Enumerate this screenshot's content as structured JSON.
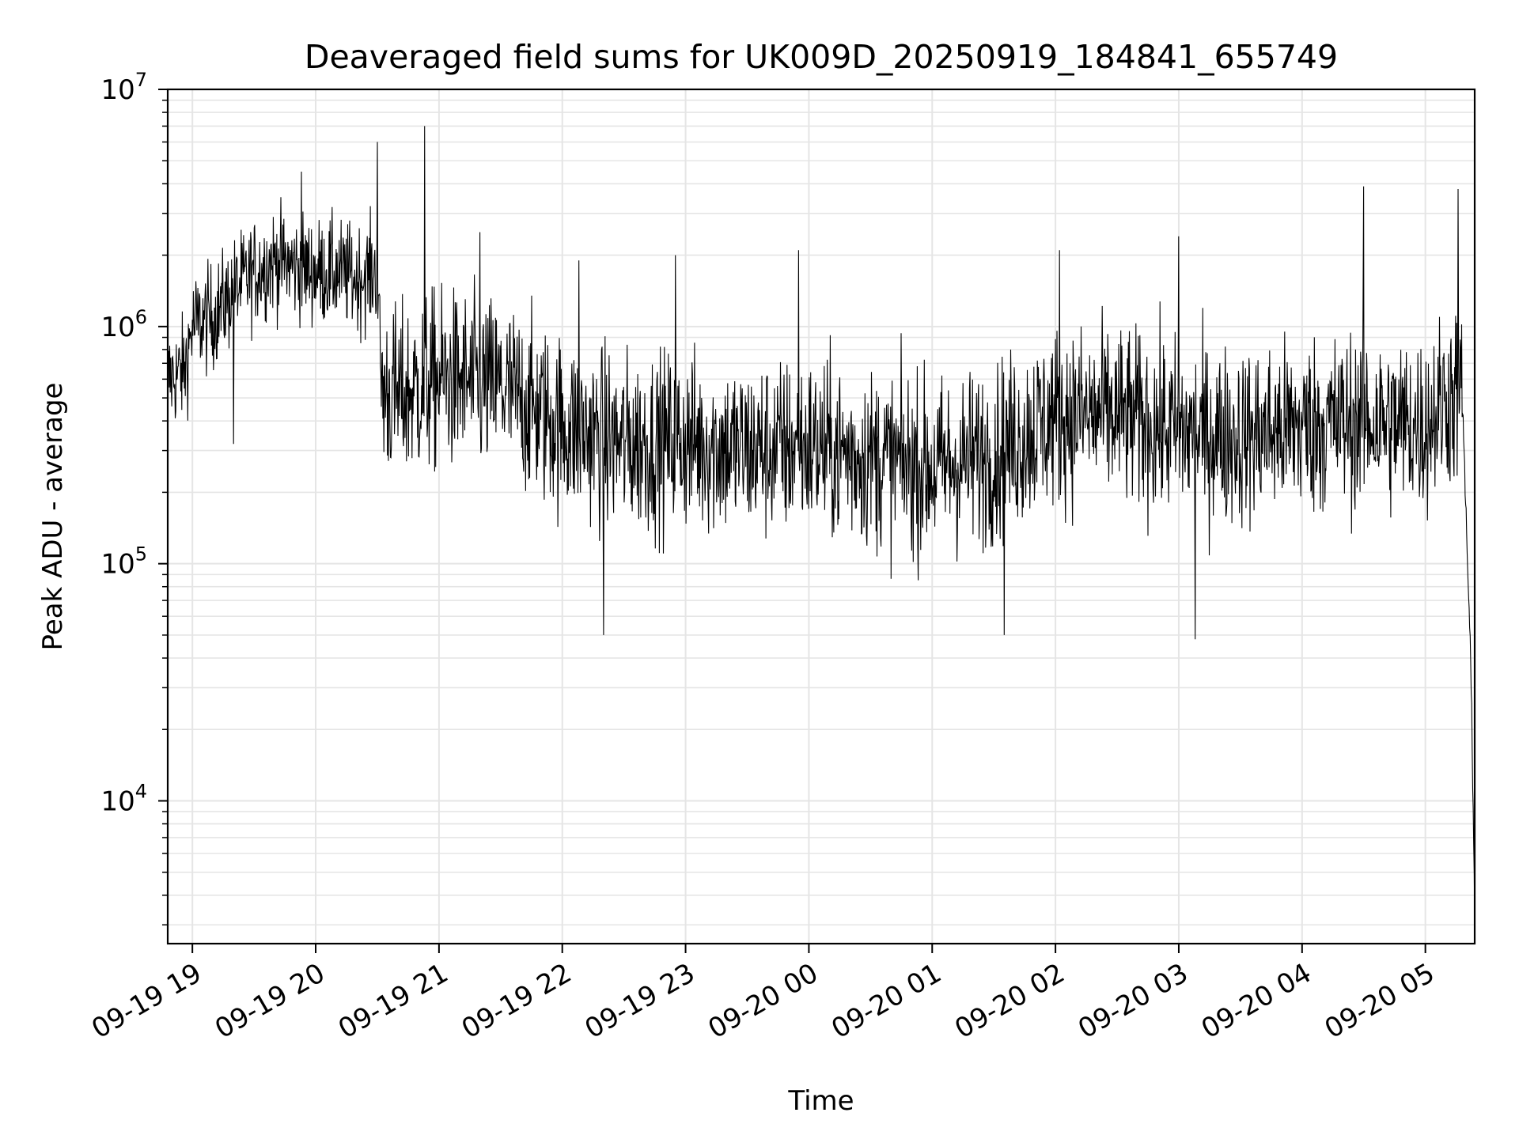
{
  "chart_data": {
    "type": "line",
    "title": "Deaveraged field sums for UK009D_20250919_184841_655749",
    "xlabel": "Time",
    "ylabel": "Peak ADU - average",
    "yscale": "log",
    "ylim": [
      2500,
      10000000
    ],
    "xlim": [
      "2025-09-19 18:48",
      "2025-09-20 05:24"
    ],
    "grid": true,
    "line_color": "#000000",
    "x_tick_labels": [
      "09-19 19",
      "09-19 20",
      "09-19 21",
      "09-19 22",
      "09-19 23",
      "09-20 00",
      "09-20 01",
      "09-20 02",
      "09-20 03",
      "09-20 04",
      "09-20 05"
    ],
    "y_ticks": [
      {
        "base": "10",
        "exp": "4",
        "value": 10000
      },
      {
        "base": "10",
        "exp": "5",
        "value": 100000
      },
      {
        "base": "10",
        "exp": "6",
        "value": 1000000
      },
      {
        "base": "10",
        "exp": "7",
        "value": 10000000
      }
    ],
    "series": [
      {
        "x": [
          "2025-09-19 18:48",
          "2025-09-19 18:56",
          "2025-09-19 19:00",
          "2025-09-19 19:10",
          "2025-09-19 19:20",
          "2025-09-19 19:30",
          "2025-09-19 19:40",
          "2025-09-19 19:50",
          "2025-09-19 20:00",
          "2025-09-19 20:10",
          "2025-09-19 20:20",
          "2025-09-19 20:30",
          "2025-09-19 20:32",
          "2025-09-19 20:40",
          "2025-09-19 21:00",
          "2025-09-19 21:30",
          "2025-09-19 22:00",
          "2025-09-19 22:30",
          "2025-09-19 23:00",
          "2025-09-19 23:30",
          "2025-09-20 00:00",
          "2025-09-20 00:30",
          "2025-09-20 01:00",
          "2025-09-20 01:30",
          "2025-09-20 02:00",
          "2025-09-20 02:30",
          "2025-09-20 03:00",
          "2025-09-20 03:30",
          "2025-09-20 04:00",
          "2025-09-20 04:30",
          "2025-09-20 05:00",
          "2025-09-20 05:10",
          "2025-09-20 05:18",
          "2025-09-20 05:22",
          "2025-09-20 05:24"
        ],
        "y": [
          600000,
          650000,
          1000000,
          1100000,
          1400000,
          1700000,
          1900000,
          1800000,
          1700000,
          1700000,
          1600000,
          1700000,
          550000,
          500000,
          600000,
          550000,
          380000,
          320000,
          330000,
          300000,
          310000,
          280000,
          250000,
          290000,
          420000,
          420000,
          360000,
          340000,
          380000,
          400000,
          380000,
          500000,
          500000,
          40000,
          3500
        ],
        "peaks": [
          {
            "x": "2025-09-19 19:53",
            "y": 4500000
          },
          {
            "x": "2025-09-19 20:30",
            "y": 6000000
          },
          {
            "x": "2025-09-19 20:53",
            "y": 7000000
          },
          {
            "x": "2025-09-19 21:20",
            "y": 2500000
          },
          {
            "x": "2025-09-19 22:08",
            "y": 1900000
          },
          {
            "x": "2025-09-19 22:55",
            "y": 2000000
          },
          {
            "x": "2025-09-19 23:55",
            "y": 2100000
          },
          {
            "x": "2025-09-20 02:02",
            "y": 2100000
          },
          {
            "x": "2025-09-20 03:00",
            "y": 2400000
          },
          {
            "x": "2025-09-20 04:30",
            "y": 3900000
          },
          {
            "x": "2025-09-20 05:16",
            "y": 3800000
          }
        ],
        "troughs": [
          {
            "x": "2025-09-19 19:20",
            "y": 320000
          },
          {
            "x": "2025-09-19 22:20",
            "y": 50000
          },
          {
            "x": "2025-09-20 01:35",
            "y": 50000
          },
          {
            "x": "2025-09-20 03:08",
            "y": 48000
          }
        ]
      }
    ]
  }
}
